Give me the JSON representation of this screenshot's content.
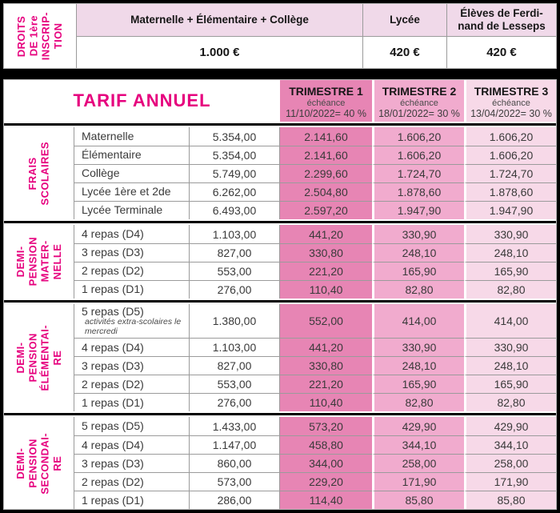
{
  "colors": {
    "accent": "#e6007e",
    "header_pink": "#f0d9e9",
    "t1_pink": "#e785b4",
    "t2_pink": "#f1abce",
    "t3_pink": "#f7d9e8",
    "grid_line": "#9b9b9b",
    "text": "#3a3a3a",
    "frame": "#000000"
  },
  "inscription_table": {
    "row_header": "DROITS\nDE 1ère\nINSCRIP-\nTION",
    "columns": [
      "Maternelle + Élémentaire + Collège",
      "Lycée",
      "Élèves de Ferdi-\nnand de Lesseps"
    ],
    "values": [
      "1.000 €",
      "420 €",
      "420 €"
    ]
  },
  "tarif_table": {
    "title": "TARIF ANNUEL",
    "trimesters": [
      {
        "name": "TRIMESTRE 1",
        "echeance_label": "échéance",
        "echeance": "11/10/2022= 40 %"
      },
      {
        "name": "TRIMESTRE 2",
        "echeance_label": "échéance",
        "echeance": "18/01/2022= 30 %"
      },
      {
        "name": "TRIMESTRE 3",
        "echeance_label": "échéance",
        "echeance": "13/04/2022= 30 %"
      }
    ],
    "sections": [
      {
        "group": "FRAIS\nSCOLAIRES",
        "rows": [
          {
            "label": "Maternelle",
            "annual": "5.354,00",
            "t1": "2.141,60",
            "t2": "1.606,20",
            "t3": "1.606,20"
          },
          {
            "label": "Élémentaire",
            "annual": "5.354,00",
            "t1": "2.141,60",
            "t2": "1.606,20",
            "t3": "1.606,20"
          },
          {
            "label": "Collège",
            "annual": "5.749,00",
            "t1": "2.299,60",
            "t2": "1.724,70",
            "t3": "1.724,70"
          },
          {
            "label": "Lycée 1ère et 2de",
            "annual": "6.262,00",
            "t1": "2.504,80",
            "t2": "1.878,60",
            "t3": "1.878,60"
          },
          {
            "label": "Lycée Terminale",
            "annual": "6.493,00",
            "t1": "2.597,20",
            "t2": "1.947,90",
            "t3": "1.947,90"
          }
        ]
      },
      {
        "group": "DEMI-\nPENSION\nMATER-\nNELLE",
        "rows": [
          {
            "label": "4 repas (D4)",
            "annual": "1.103,00",
            "t1": "441,20",
            "t2": "330,90",
            "t3": "330,90"
          },
          {
            "label": "3 repas (D3)",
            "annual": "827,00",
            "t1": "330,80",
            "t2": "248,10",
            "t3": "248,10"
          },
          {
            "label": "2 repas (D2)",
            "annual": "553,00",
            "t1": "221,20",
            "t2": "165,90",
            "t3": "165,90"
          },
          {
            "label": "1 repas (D1)",
            "annual": "276,00",
            "t1": "110,40",
            "t2": "82,80",
            "t3": "82,80"
          }
        ]
      },
      {
        "group": "DEMI-\nPENSION\nÉLÉMENTAI-\nRE",
        "rows": [
          {
            "label": "5 repas (D5)",
            "note": "activités extra-scolaires le mercredi",
            "annual": "1.380,00",
            "t1": "552,00",
            "t2": "414,00",
            "t3": "414,00"
          },
          {
            "label": "4 repas (D4)",
            "annual": "1.103,00",
            "t1": "441,20",
            "t2": "330,90",
            "t3": "330,90"
          },
          {
            "label": "3 repas (D3)",
            "annual": "827,00",
            "t1": "330,80",
            "t2": "248,10",
            "t3": "248,10"
          },
          {
            "label": "2 repas (D2)",
            "annual": "553,00",
            "t1": "221,20",
            "t2": "165,90",
            "t3": "165,90"
          },
          {
            "label": "1 repas (D1)",
            "annual": "276,00",
            "t1": "110,40",
            "t2": "82,80",
            "t3": "82,80"
          }
        ]
      },
      {
        "group": "DEMI-\nPENSION\nSECONDAI-\nRE",
        "rows": [
          {
            "label": "5 repas (D5)",
            "annual": "1.433,00",
            "t1": "573,20",
            "t2": "429,90",
            "t3": "429,90"
          },
          {
            "label": "4 repas (D4)",
            "annual": "1.147,00",
            "t1": "458,80",
            "t2": "344,10",
            "t3": "344,10"
          },
          {
            "label": "3 repas (D3)",
            "annual": "860,00",
            "t1": "344,00",
            "t2": "258,00",
            "t3": "258,00"
          },
          {
            "label": "2 repas (D2)",
            "annual": "573,00",
            "t1": "229,20",
            "t2": "171,90",
            "t3": "171,90"
          },
          {
            "label": "1 repas (D1)",
            "annual": "286,00",
            "t1": "114,40",
            "t2": "85,80",
            "t3": "85,80"
          }
        ]
      }
    ]
  }
}
